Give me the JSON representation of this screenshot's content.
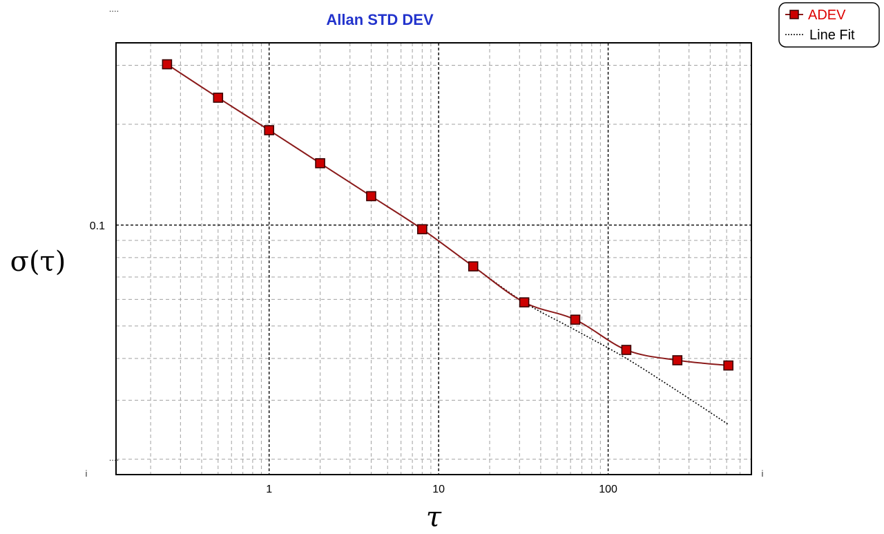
{
  "chart_data": {
    "type": "line",
    "title": "Allan STD DEV",
    "xlabel": "τ",
    "ylabel": "σ(τ)",
    "x_scale": "log",
    "y_scale": "log",
    "xlim": [
      0.125,
      700
    ],
    "ylim": [
      0.018,
      0.35
    ],
    "x_ticks": [
      {
        "value": 1,
        "label": "1"
      },
      {
        "value": 10,
        "label": "10"
      },
      {
        "value": 100,
        "label": "100"
      }
    ],
    "y_ticks": [
      {
        "value": 0.1,
        "label": "0.1"
      }
    ],
    "x_stub_labels": [
      "i",
      "i"
    ],
    "y_stub_labels": [
      "....",
      "....",
      "...."
    ],
    "grid": true,
    "legend_position": "top-right",
    "series": [
      {
        "name": "ADEV",
        "color": "#8b1a1a",
        "marker": "square",
        "marker_fill": "#cc0000",
        "x": [
          0.25,
          0.5,
          1,
          2,
          4,
          8,
          16,
          32,
          64,
          128,
          256,
          512
        ],
        "y": [
          0.302,
          0.24,
          0.192,
          0.153,
          0.122,
          0.0972,
          0.0753,
          0.0588,
          0.0522,
          0.0424,
          0.0395,
          0.0381
        ]
      },
      {
        "name": "Line Fit",
        "color": "#000000",
        "line_style": "dotted",
        "x": [
          0.25,
          0.5,
          1,
          2,
          4,
          8,
          16,
          32,
          64,
          128,
          256,
          512
        ],
        "y": [
          0.302,
          0.24,
          0.192,
          0.153,
          0.122,
          0.0972,
          0.0753,
          0.0588,
          0.0486,
          0.04,
          0.032,
          0.0254
        ]
      }
    ]
  },
  "colors": {
    "title": "#2233cc",
    "axis": "#000000",
    "grid_minor": "#a0a0a0",
    "grid_major": "#000000",
    "legend_adev_text": "#dd0000",
    "legend_fit_text": "#000000"
  }
}
